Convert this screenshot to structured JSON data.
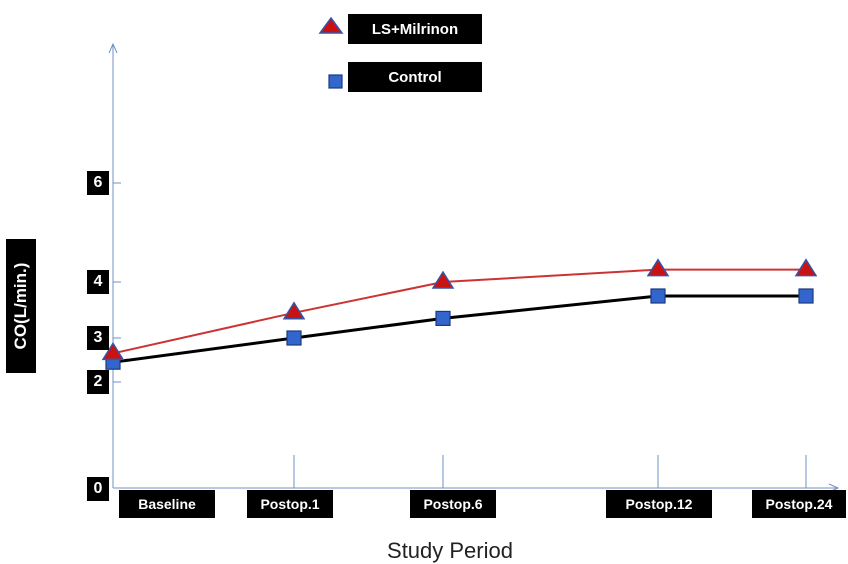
{
  "chart_data": {
    "type": "line",
    "categories": [
      "Baseline",
      "Postop.1",
      "Postop.6",
      "Postop.12",
      "Postop.24"
    ],
    "series": [
      {
        "name": "LS+Milrinon",
        "values": [
          2.65,
          3.45,
          4.0,
          4.25,
          4.25
        ],
        "color": "#cc3333",
        "marker": "triangle",
        "marker_fill": "#cc1111",
        "marker_stroke": "#3355aa"
      },
      {
        "name": "Control",
        "values": [
          2.45,
          3.0,
          3.35,
          3.75,
          3.75
        ],
        "color": "#000000",
        "marker": "square",
        "marker_fill": "#3366cc",
        "marker_stroke": "#1a3a80"
      }
    ],
    "yticks": [
      "0",
      "2",
      "3",
      "4",
      "6"
    ],
    "xlabel": "Study Period",
    "ylabel": "CO(L/min.)",
    "ylim": [
      0,
      6
    ],
    "grid": false,
    "legend_position": "top-center"
  }
}
